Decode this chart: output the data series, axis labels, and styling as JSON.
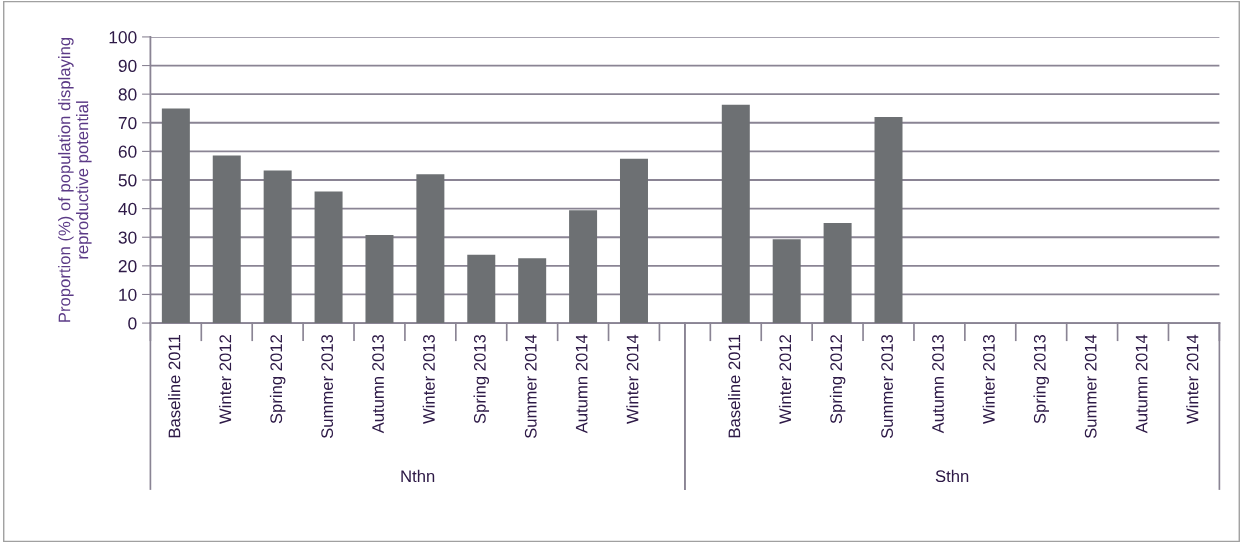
{
  "chart_data": {
    "type": "bar",
    "ylabel": "Proportion (%) of population displaying reproductive potential",
    "categories": [
      "Baseline 2011",
      "Winter 2012",
      "Spring 2012",
      "Summer 2013",
      "Autumn 2013",
      "Winter 2013",
      "Spring 2013",
      "Summer 2014",
      "Autumn 2014",
      "Winter 2014",
      null,
      "Baseline 2011",
      "Winter 2012",
      "Spring 2012",
      "Summer 2013",
      "Autumn 2013",
      "Winter 2013",
      "Spring 2013",
      "Summer 2014",
      "Autumn 2014",
      "Winter 2014"
    ],
    "values": [
      75,
      58.6,
      53.3,
      46,
      30.8,
      52,
      23.9,
      22.7,
      39.4,
      57.4,
      null,
      76.3,
      29.3,
      35,
      72,
      null,
      null,
      null,
      null,
      null,
      null
    ],
    "color": "#6d7073",
    "ylim": [
      0,
      100
    ],
    "yticks": [
      0,
      10,
      20,
      30,
      40,
      50,
      60,
      70,
      80,
      90,
      100
    ],
    "grid": "y",
    "annotations": [
      "Nthn",
      "Sthn"
    ]
  }
}
